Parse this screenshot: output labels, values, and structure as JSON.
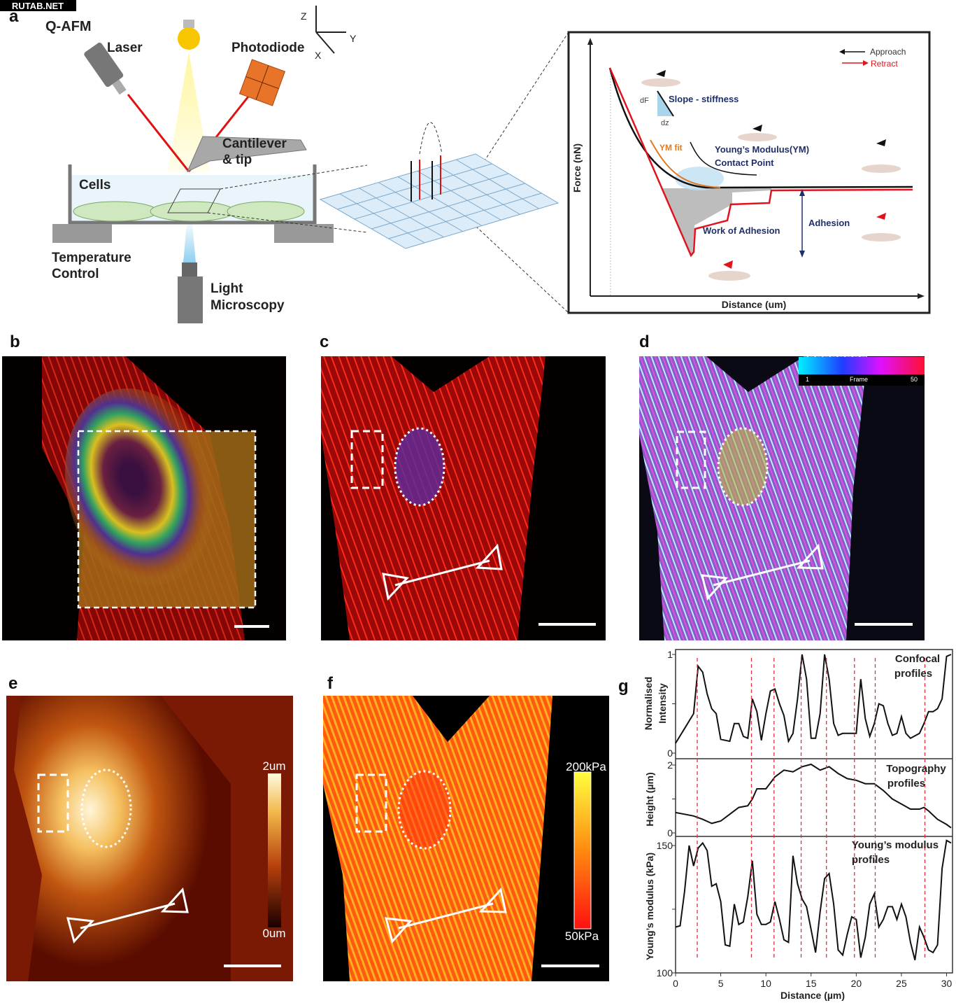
{
  "watermark": "RUTAB.NET",
  "panel_labels": {
    "a": "a",
    "b": "b",
    "c": "c",
    "d": "d",
    "e": "e",
    "f": "f",
    "g": "g"
  },
  "schematic": {
    "title": "Q-AFM",
    "laser": "Laser",
    "photodiode": "Photodiode",
    "cantilever_1": "Cantilever",
    "cantilever_2": "& tip",
    "cells": "Cells",
    "temp_1": "Temperature",
    "temp_2": "Control",
    "micro_1": "Light",
    "micro_2": "Microscopy",
    "axis_z": "Z",
    "axis_y": "Y",
    "axis_x": "X"
  },
  "force_curve": {
    "ylabel": "Force (nN)",
    "xlabel": "Distance (um)",
    "approach": "Approach",
    "retract": "Retract",
    "slope": "Slope - stiffness",
    "df": "dF",
    "dz": "dz",
    "ym_fit": "YM fit",
    "ym_1": "Young’s Modulus(YM)",
    "ym_2": "Contact Point",
    "work": "Work of Adhesion",
    "adhesion": "Adhesion",
    "colors": {
      "approach": "#111111",
      "retract": "#e0141e",
      "fit": "#e07a1f",
      "text": "#1f2f6b"
    }
  },
  "panel_d_colorbar": {
    "min": "1",
    "label": "Frame",
    "max": "50"
  },
  "panel_e_colorbar": {
    "max": "2um",
    "min": "0um"
  },
  "panel_f_colorbar": {
    "max": "200kPa",
    "min": "50kPa"
  },
  "chart_data": {
    "type": "line",
    "xlabel": "Distance (µm)",
    "xlim": [
      0,
      30.5
    ],
    "xticks": [
      0,
      5,
      10,
      15,
      20,
      25,
      30
    ],
    "reference_lines_x": [
      2.4,
      8.4,
      10.9,
      13.9,
      16.7,
      19.8,
      22.1,
      27.6
    ],
    "reference_line_color": "#e0303a",
    "panels": [
      {
        "title_1": "Confocal",
        "title_2": "profiles",
        "ylabel_1": "Normalised",
        "ylabel_2": "Intensity",
        "ylim": [
          0,
          1
        ],
        "yticks": [
          "0",
          "1"
        ],
        "x": [
          0,
          1,
          2,
          2.5,
          3,
          3.5,
          4,
          4.5,
          5,
          6,
          6.5,
          7,
          7.5,
          8,
          8.5,
          9,
          9.5,
          10,
          10.5,
          11,
          11.5,
          12,
          12.5,
          13,
          13.5,
          14,
          14.5,
          15,
          15.5,
          16,
          16.5,
          17,
          17.5,
          18,
          18.5,
          19,
          19.5,
          20,
          20.5,
          21,
          21.5,
          22,
          22.5,
          23,
          23.5,
          24,
          24.5,
          25,
          25.5,
          26,
          27,
          27.5,
          28,
          28.5,
          29,
          29.5,
          30,
          30.5
        ],
        "y": [
          0.1,
          0.25,
          0.4,
          0.88,
          0.82,
          0.6,
          0.45,
          0.4,
          0.14,
          0.12,
          0.3,
          0.3,
          0.17,
          0.15,
          0.55,
          0.42,
          0.13,
          0.4,
          0.63,
          0.65,
          0.5,
          0.38,
          0.12,
          0.2,
          0.55,
          1.0,
          0.75,
          0.15,
          0.15,
          0.4,
          1.0,
          0.75,
          0.3,
          0.18,
          0.2,
          0.2,
          0.2,
          0.2,
          0.75,
          0.35,
          0.17,
          0.3,
          0.5,
          0.48,
          0.3,
          0.18,
          0.2,
          0.37,
          0.2,
          0.15,
          0.2,
          0.3,
          0.42,
          0.42,
          0.45,
          0.55,
          0.98,
          1.0
        ]
      },
      {
        "title_1": "Topography",
        "title_2": "profiles",
        "ylabel_1": "Height (µm)",
        "ylabel_2": "",
        "ylim": [
          0,
          2
        ],
        "yticks": [
          "0",
          "2"
        ],
        "x": [
          0,
          1,
          2,
          3,
          4,
          5,
          6,
          7,
          8,
          8.5,
          9,
          10,
          11,
          12,
          13,
          14,
          15,
          16,
          17,
          18,
          19,
          20,
          21,
          22,
          23,
          24,
          25,
          26,
          27,
          27.5,
          28,
          29,
          30,
          30.5
        ],
        "y": [
          0.6,
          0.55,
          0.5,
          0.4,
          0.28,
          0.35,
          0.55,
          0.75,
          0.8,
          1.0,
          1.3,
          1.3,
          1.65,
          1.85,
          1.8,
          1.95,
          2.02,
          1.85,
          1.95,
          1.75,
          1.6,
          1.55,
          1.45,
          1.45,
          1.25,
          1.0,
          0.85,
          0.7,
          0.7,
          0.75,
          0.65,
          0.4,
          0.25,
          0.15
        ]
      },
      {
        "title_1": "Young’s modulus",
        "title_2": "profiles",
        "ylabel_1": "Young’s modulus (kPa)",
        "ylabel_2": "",
        "ylim": [
          100,
          150
        ],
        "yticks": [
          "100",
          "150"
        ],
        "x": [
          0,
          0.5,
          1,
          1.5,
          2,
          2.5,
          3,
          3.5,
          4,
          4.5,
          5,
          5.5,
          6,
          6.5,
          7,
          7.5,
          8,
          8.5,
          9,
          9.5,
          10,
          10.5,
          11,
          11.5,
          12,
          12.5,
          13,
          13.5,
          14,
          14.5,
          15,
          15.5,
          16,
          16.5,
          17,
          17.5,
          18,
          18.5,
          19,
          19.5,
          20,
          20.5,
          21,
          21.5,
          22,
          22.5,
          23,
          23.5,
          24,
          24.5,
          25,
          25.5,
          26,
          26.5,
          27,
          27.5,
          28,
          28.5,
          29,
          29.5,
          30,
          30.5
        ],
        "y": [
          118,
          118.5,
          132,
          150,
          142,
          149,
          151,
          148,
          134,
          135,
          128,
          111,
          110.5,
          127,
          119,
          120,
          130,
          144,
          123,
          119,
          119,
          120,
          128,
          121,
          113,
          112,
          146,
          135,
          129,
          126,
          117,
          108,
          124,
          137,
          139,
          127,
          109,
          107,
          115,
          122,
          121,
          106,
          114,
          127,
          131,
          118,
          121,
          126,
          126,
          121,
          127,
          122,
          112,
          105,
          118,
          114,
          109,
          108,
          111,
          141,
          152,
          151
        ]
      }
    ]
  }
}
